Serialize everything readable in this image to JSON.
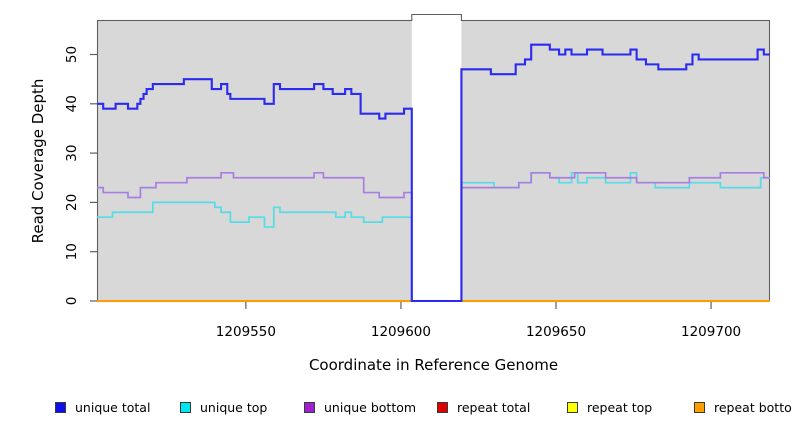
{
  "chart_data": {
    "type": "line",
    "line_style": "step-after",
    "title": "",
    "xlabel": "Coordinate in Reference Genome",
    "ylabel": "Read Coverage Depth",
    "xlim": [
      1209502,
      1209719
    ],
    "ylim": [
      0,
      57
    ],
    "x_ticks": [
      1209550,
      1209600,
      1209650,
      1209700
    ],
    "y_ticks": [
      0,
      10,
      20,
      30,
      40,
      50
    ],
    "grid": false,
    "plot_bg_color": "#d8d8d8",
    "border_color": "#5f5f5f",
    "legend_position": "bottom",
    "masked_region": {
      "x_start": 1209603.5,
      "x_end": 1209619.5,
      "color": "#ffffff",
      "note": "white column where all coverage drops to 0"
    },
    "draw_order": [
      "repeat total",
      "repeat top",
      "repeat bottom",
      "__mask__",
      "unique top",
      "unique bottom",
      "unique total"
    ],
    "series": [
      {
        "name": "unique total",
        "color": "#2a2af0",
        "width": 2.1,
        "points": [
          [
            1209502,
            40
          ],
          [
            1209504,
            39
          ],
          [
            1209508,
            40
          ],
          [
            1209512,
            39
          ],
          [
            1209515,
            40
          ],
          [
            1209516,
            41
          ],
          [
            1209517,
            42
          ],
          [
            1209518,
            43
          ],
          [
            1209520,
            44
          ],
          [
            1209530,
            45
          ],
          [
            1209539,
            43
          ],
          [
            1209542,
            44
          ],
          [
            1209544,
            42
          ],
          [
            1209545,
            41
          ],
          [
            1209556,
            40
          ],
          [
            1209559,
            44
          ],
          [
            1209561,
            43
          ],
          [
            1209572,
            44
          ],
          [
            1209575,
            43
          ],
          [
            1209578,
            42
          ],
          [
            1209582,
            43
          ],
          [
            1209584,
            42
          ],
          [
            1209587,
            38
          ],
          [
            1209593,
            37
          ],
          [
            1209595,
            38
          ],
          [
            1209601,
            39
          ],
          [
            1209603.5,
            0
          ],
          [
            1209619.5,
            47
          ],
          [
            1209629,
            46
          ],
          [
            1209637,
            48
          ],
          [
            1209640,
            49
          ],
          [
            1209642,
            52
          ],
          [
            1209648,
            51
          ],
          [
            1209651,
            50
          ],
          [
            1209653,
            51
          ],
          [
            1209655,
            50
          ],
          [
            1209660,
            51
          ],
          [
            1209665,
            50
          ],
          [
            1209674,
            51
          ],
          [
            1209676,
            49
          ],
          [
            1209679,
            48
          ],
          [
            1209683,
            47
          ],
          [
            1209692,
            48
          ],
          [
            1209694,
            50
          ],
          [
            1209696,
            49
          ],
          [
            1209715,
            51
          ],
          [
            1209717,
            50
          ],
          [
            1209719,
            50
          ]
        ]
      },
      {
        "name": "unique top",
        "color": "#55dce6",
        "width": 1.7,
        "points": [
          [
            1209502,
            17
          ],
          [
            1209507,
            18
          ],
          [
            1209520,
            20
          ],
          [
            1209540,
            19
          ],
          [
            1209542,
            18
          ],
          [
            1209545,
            16
          ],
          [
            1209551,
            17
          ],
          [
            1209556,
            15
          ],
          [
            1209559,
            19
          ],
          [
            1209561,
            18
          ],
          [
            1209579,
            17
          ],
          [
            1209582,
            18
          ],
          [
            1209584,
            17
          ],
          [
            1209588,
            16
          ],
          [
            1209594,
            17
          ],
          [
            1209603.5,
            0
          ],
          [
            1209619.5,
            24
          ],
          [
            1209630,
            23
          ],
          [
            1209638,
            24
          ],
          [
            1209642,
            26
          ],
          [
            1209648,
            25
          ],
          [
            1209651,
            24
          ],
          [
            1209655,
            26
          ],
          [
            1209657,
            24
          ],
          [
            1209660,
            25
          ],
          [
            1209666,
            24
          ],
          [
            1209674,
            26
          ],
          [
            1209676,
            24
          ],
          [
            1209682,
            23
          ],
          [
            1209693,
            24
          ],
          [
            1209703,
            23
          ],
          [
            1209716,
            25
          ],
          [
            1209719,
            25
          ]
        ]
      },
      {
        "name": "unique bottom",
        "color": "#a87fe0",
        "width": 1.7,
        "points": [
          [
            1209502,
            23
          ],
          [
            1209504,
            22
          ],
          [
            1209512,
            21
          ],
          [
            1209516,
            23
          ],
          [
            1209521,
            24
          ],
          [
            1209531,
            25
          ],
          [
            1209542,
            26
          ],
          [
            1209546,
            25
          ],
          [
            1209572,
            26
          ],
          [
            1209575,
            25
          ],
          [
            1209588,
            22
          ],
          [
            1209593,
            21
          ],
          [
            1209601,
            22
          ],
          [
            1209603.5,
            0
          ],
          [
            1209619.5,
            23
          ],
          [
            1209638,
            24
          ],
          [
            1209642,
            26
          ],
          [
            1209648,
            25
          ],
          [
            1209656,
            26
          ],
          [
            1209666,
            25
          ],
          [
            1209676,
            24
          ],
          [
            1209693,
            25
          ],
          [
            1209703,
            26
          ],
          [
            1209717,
            25
          ],
          [
            1209719,
            25
          ]
        ]
      },
      {
        "name": "repeat total",
        "color": "#dd0000",
        "width": 1.7,
        "points": [
          [
            1209502,
            0
          ],
          [
            1209719,
            0
          ]
        ]
      },
      {
        "name": "repeat top",
        "color": "#ffff00",
        "width": 1.7,
        "points": [
          [
            1209502,
            0
          ],
          [
            1209719,
            0
          ]
        ]
      },
      {
        "name": "repeat bottom",
        "color": "#ff9d00",
        "width": 1.9,
        "points": [
          [
            1209502,
            0
          ],
          [
            1209719,
            0
          ]
        ]
      }
    ],
    "legend": [
      {
        "label": "unique total",
        "color": "#0f0fe8"
      },
      {
        "label": "unique top",
        "color": "#00e5ee"
      },
      {
        "label": "unique bottom",
        "color": "#a020d0"
      },
      {
        "label": "repeat total",
        "color": "#dd0000"
      },
      {
        "label": "repeat top",
        "color": "#ffff00"
      },
      {
        "label": "repeat bottom",
        "color": "#ffa000"
      }
    ],
    "legend_item_x": [
      55,
      180,
      304,
      437,
      567,
      694
    ]
  }
}
